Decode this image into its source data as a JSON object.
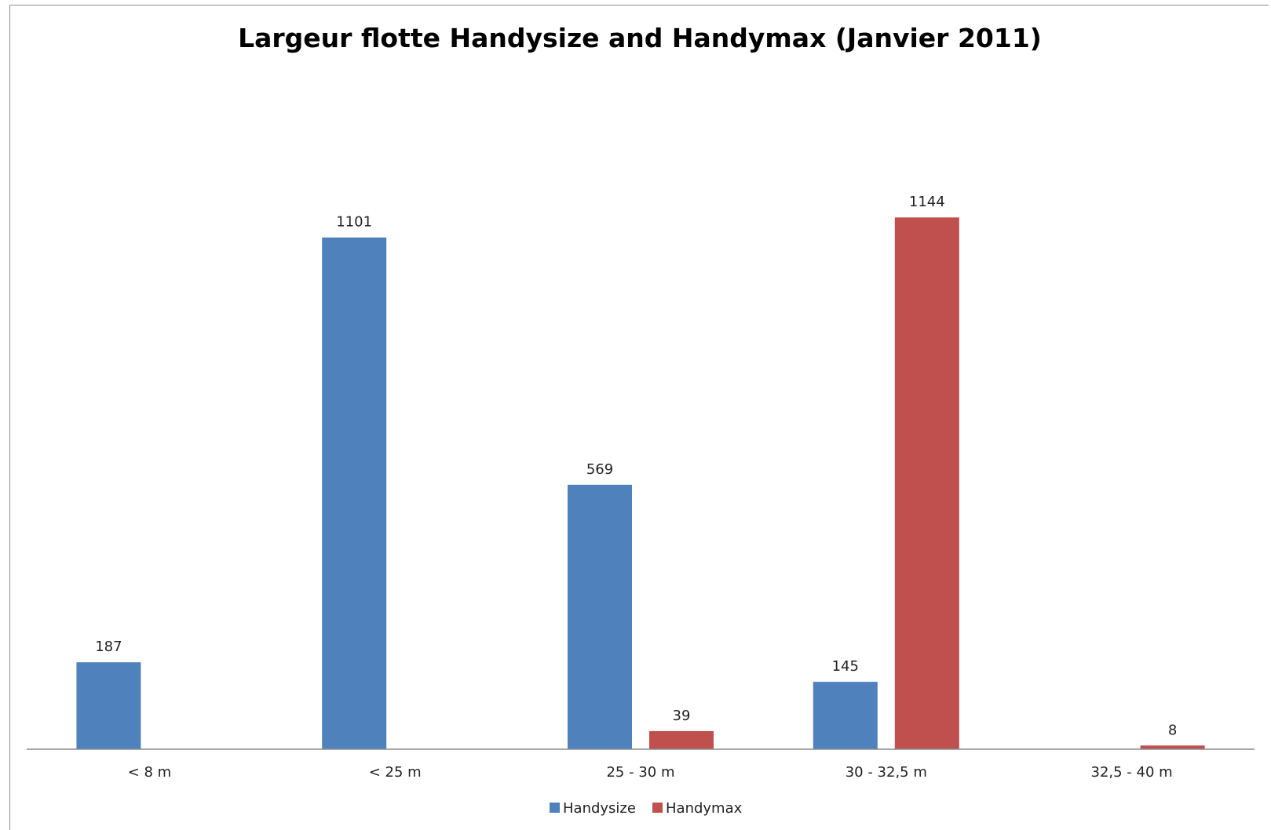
{
  "chart_data": {
    "type": "bar",
    "title": "Largeur flotte Handysize and Handymax (Janvier 2011)",
    "xlabel": "",
    "ylabel": "",
    "categories": [
      "< 8 m",
      "< 25 m",
      "25 - 30 m",
      "30 - 32,5 m",
      "32,5 - 40 m"
    ],
    "series": [
      {
        "name": "Handysize",
        "color": "#4f81bd",
        "values": [
          187,
          1101,
          569,
          145,
          null
        ]
      },
      {
        "name": "Handymax",
        "color": "#c0504d",
        "values": [
          null,
          null,
          39,
          1144,
          8
        ]
      }
    ],
    "ylim": [
      0,
      1200
    ],
    "grid": false,
    "legend": "bottom",
    "data_labels": true
  }
}
